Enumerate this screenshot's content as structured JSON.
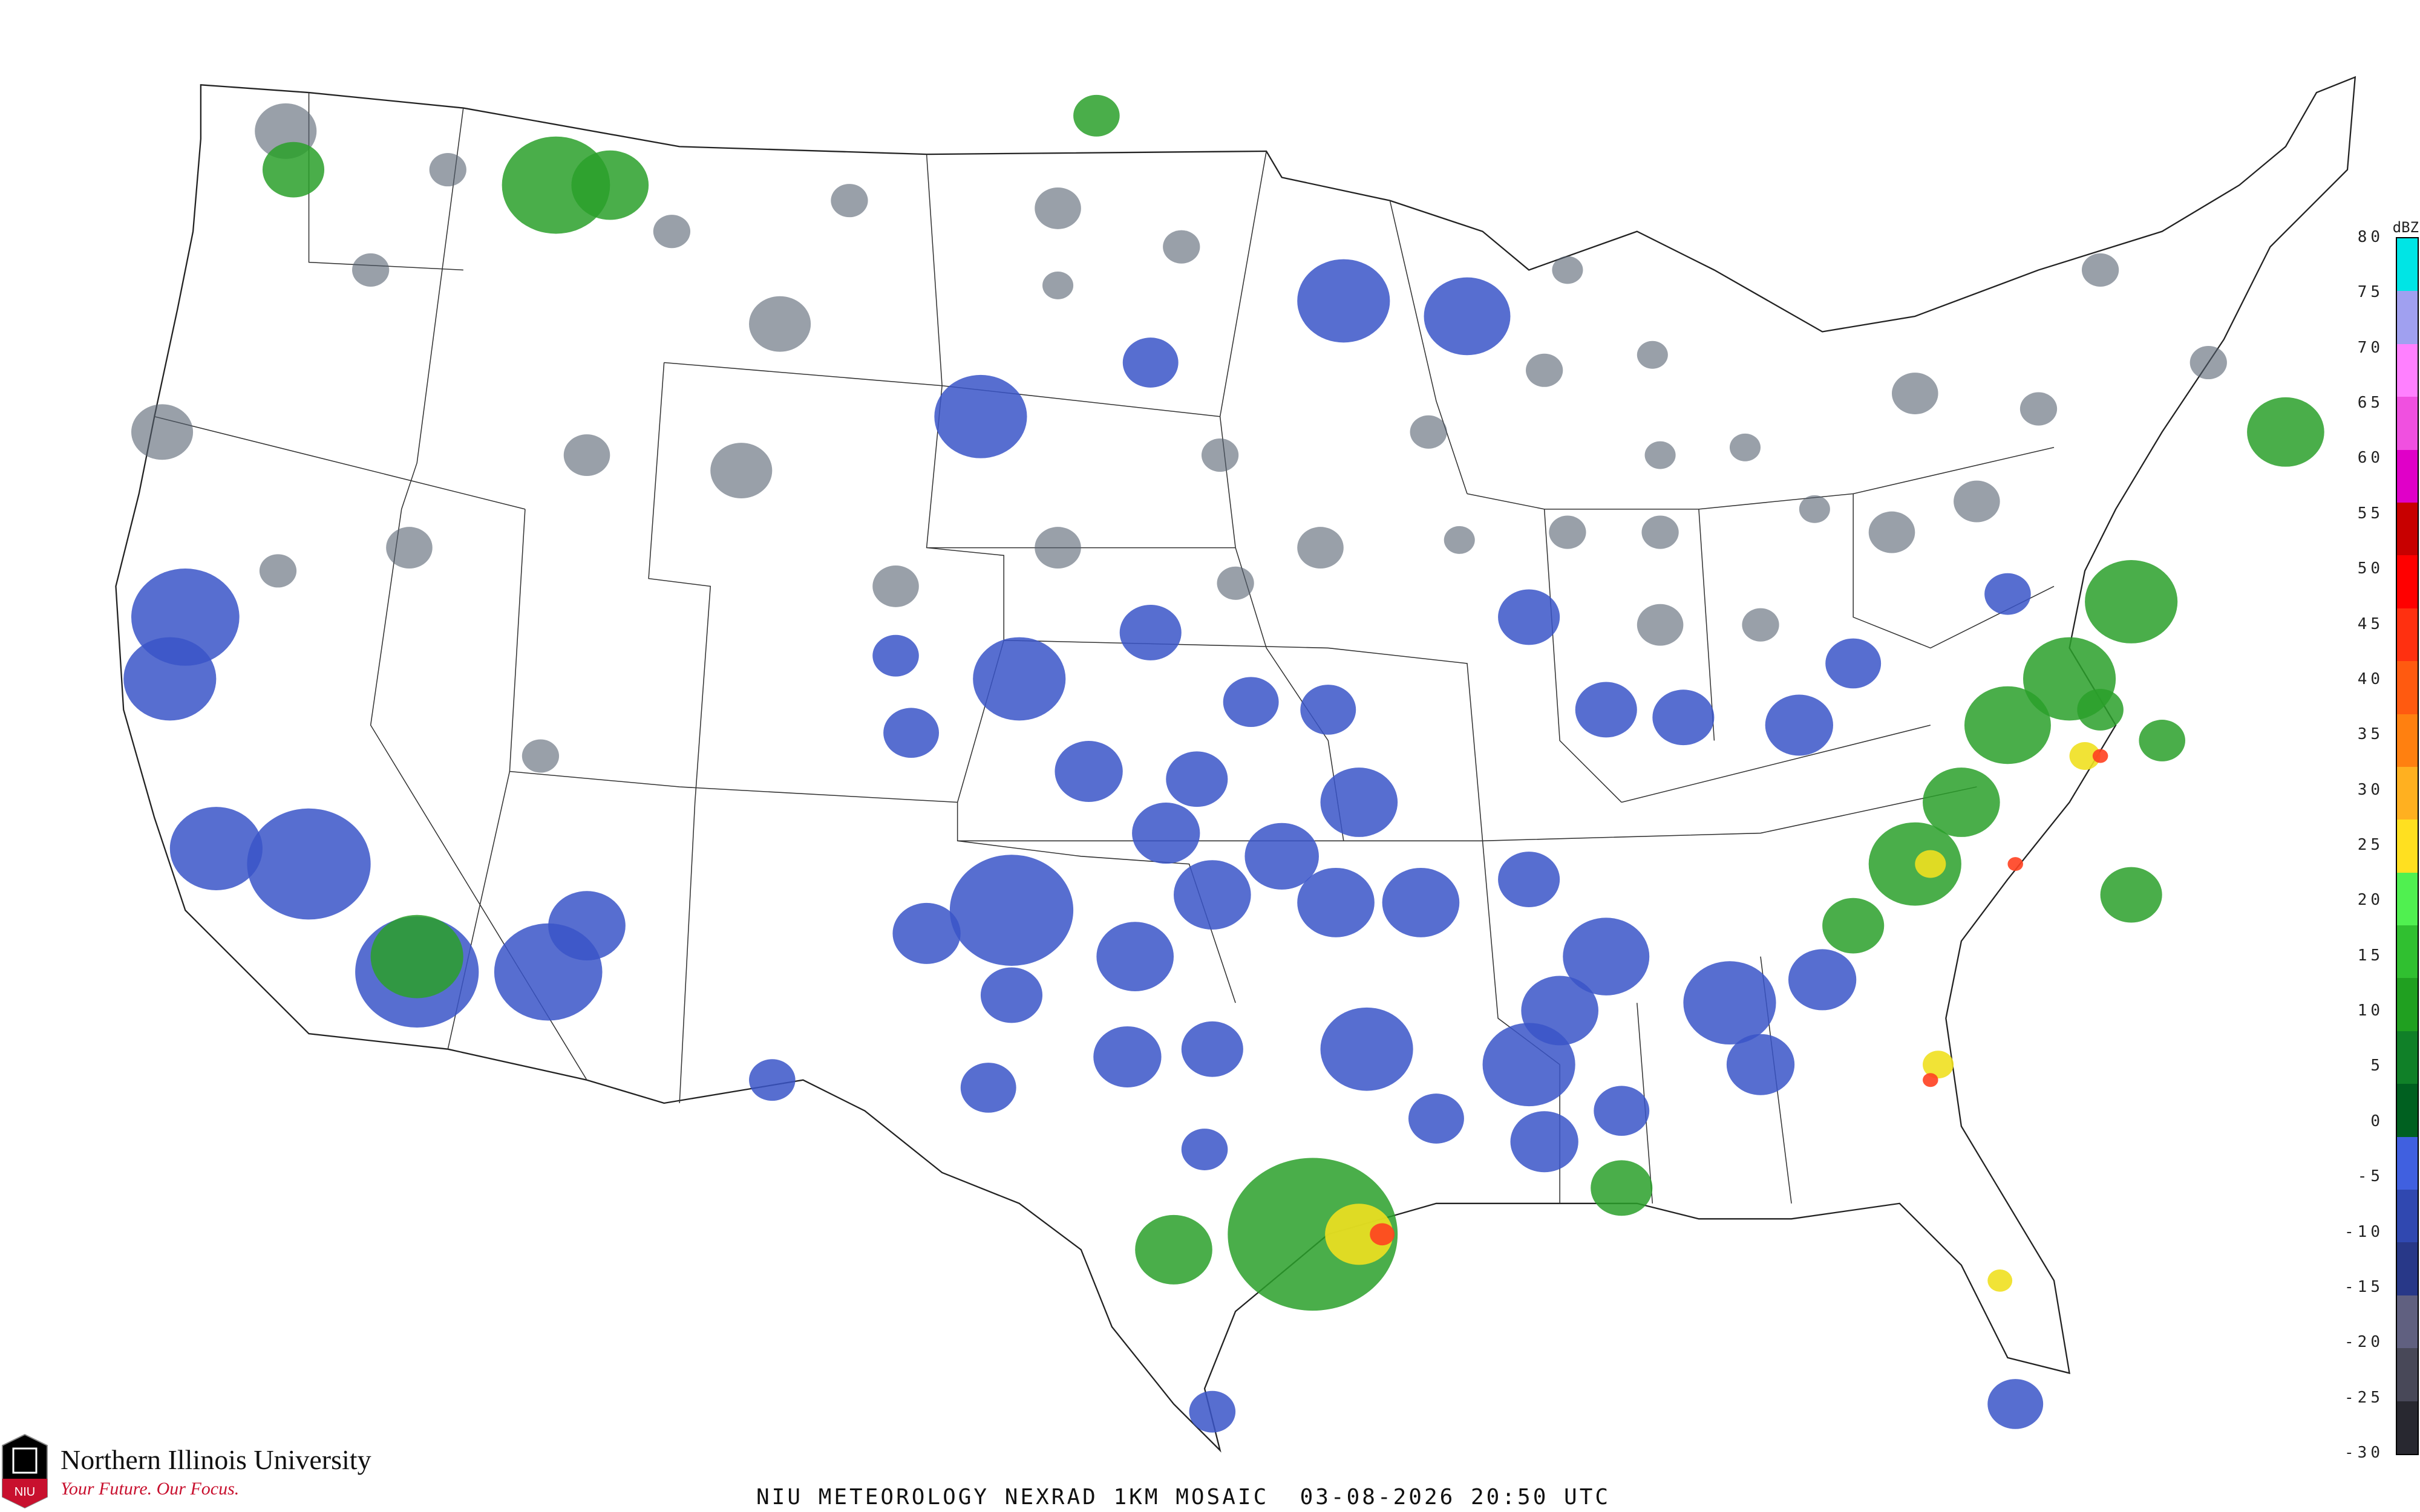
{
  "title": "NIU METEOROLOGY NEXRAD 1KM MOSAIC  03-08-2026 20:50 UTC",
  "logo": {
    "university": "Northern Illinois University",
    "tagline": "Your Future. Our Focus.",
    "mark_text": "NIU"
  },
  "legend": {
    "unit": "dBZ",
    "ticks": [
      "80",
      "75",
      "70",
      "65",
      "60",
      "55",
      "50",
      "45",
      "40",
      "35",
      "30",
      "25",
      "20",
      "15",
      "10",
      "5",
      "0",
      "-5",
      "-10",
      "-15",
      "-20",
      "-25",
      "-30"
    ],
    "colors": [
      "#00e5e5",
      "#a0a0f0",
      "#ff80ff",
      "#f050e0",
      "#e000c8",
      "#c80000",
      "#ff0000",
      "#ff3010",
      "#ff5a10",
      "#ff8010",
      "#ffb020",
      "#ffe020",
      "#50f050",
      "#30c030",
      "#20a020",
      "#108028",
      "#006020",
      "#4060e0",
      "#3048b0",
      "#283888",
      "#606080",
      "#484858",
      "#282830"
    ],
    "background": "#ffffff"
  },
  "map": {
    "region": "Contiguous United States",
    "palette": {
      "light_echo": "#3a55c8",
      "noise": "#556070",
      "moderate": "#2aa02a",
      "strong": "#f0e020",
      "intense": "#ff4020",
      "borders": "#222222",
      "counties": "#bbbbbb",
      "highways": "#b0603a"
    }
  }
}
